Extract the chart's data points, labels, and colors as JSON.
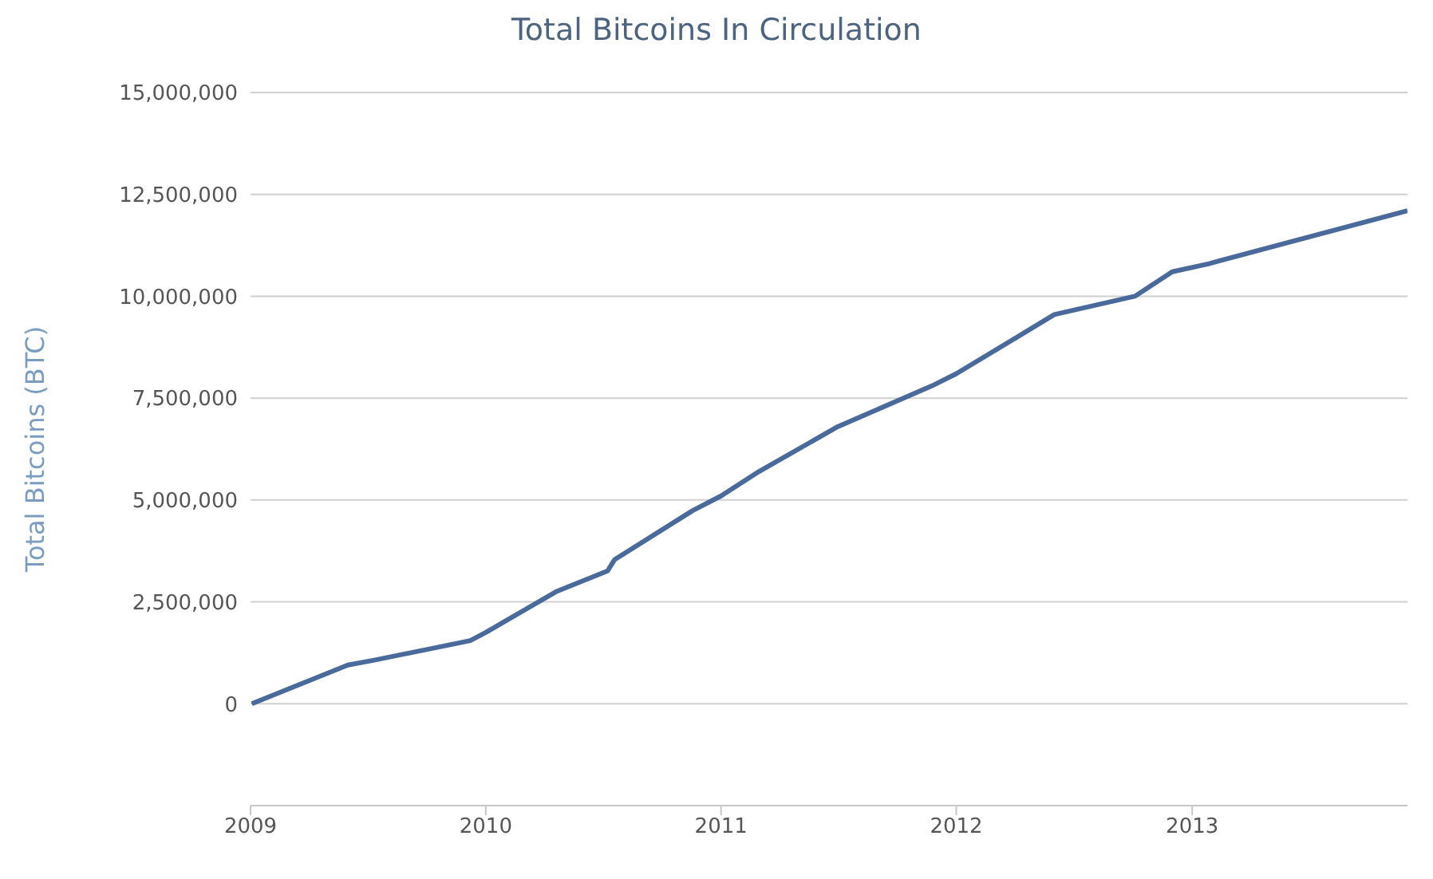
{
  "chart_data": {
    "type": "line",
    "title": "Total Bitcoins In Circulation",
    "ylabel": "Total Bitcoins (BTC)",
    "x": [
      "2009-01-03",
      "2009-06-01",
      "2009-07-12",
      "2009-12-08",
      "2010-01-01",
      "2010-04-20",
      "2010-07-09",
      "2010-07-20",
      "2010-11-18",
      "2011-01-01",
      "2011-03-01",
      "2011-07-01",
      "2011-11-24",
      "2012-01-01",
      "2012-06-01",
      "2012-10-04",
      "2012-12-01",
      "2013-01-27",
      "2013-12-01"
    ],
    "series": [
      {
        "color": "#4a6a9c",
        "values": [
          0,
          950000,
          1070000,
          1550000,
          1750000,
          2750000,
          3260000,
          3540000,
          4740000,
          5100000,
          5700000,
          6800000,
          7800000,
          8100000,
          9550000,
          10000000,
          10600000,
          10800000,
          12100000
        ]
      }
    ],
    "xlim": [
      "2009-01-01",
      "2013-12-01"
    ],
    "xticks": [
      "2009",
      "2010",
      "2011",
      "2012",
      "2013"
    ],
    "ylim": [
      -2500000,
      15000000
    ],
    "yticks": [
      0,
      {
        "value": 2500000,
        "label": "2,500,000"
      },
      {
        "value": 5000000,
        "label": "5,000,000"
      },
      {
        "value": 7500000,
        "label": "7,500,000"
      },
      {
        "value": 10000000,
        "label": "10,000,000"
      },
      {
        "value": 12500000,
        "label": "12,500,000"
      },
      {
        "value": 15000000,
        "label": "15,000,000"
      }
    ],
    "grid": "y",
    "legend": false,
    "marker": "none",
    "line_style": "solid"
  }
}
